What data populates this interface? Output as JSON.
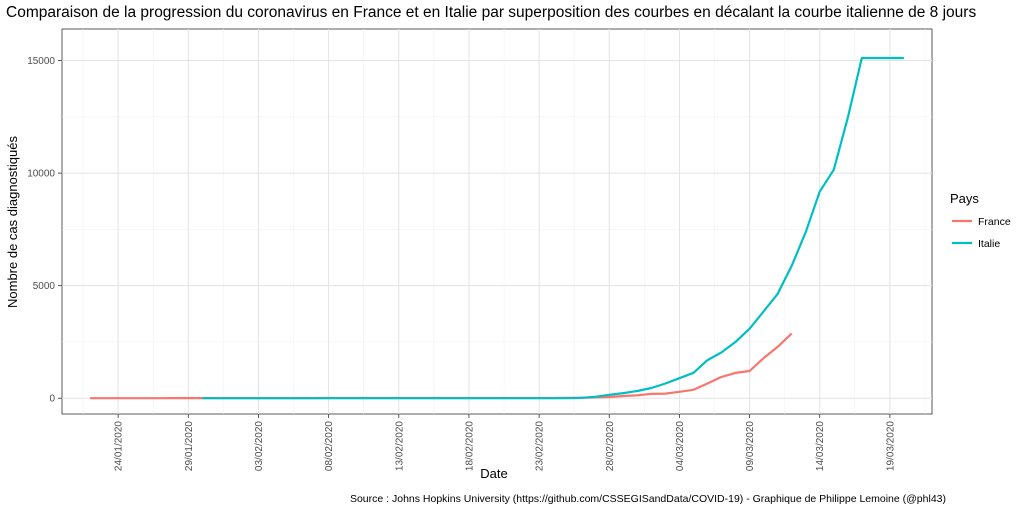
{
  "chart_data": {
    "type": "line",
    "title": "Comparaison de la progression du coronavirus en France et en Italie par superposition des courbes en décalant la courbe italienne de 8 jours",
    "xlabel": "Date",
    "ylabel": "Nombre de cas diagnostiqués",
    "caption": "Source : Johns Hopkins University (https://github.com/CSSEGISandData/COVID-19) - Graphique de Philippe Lemoine (@phl43)",
    "legend_title": "Pays",
    "legend_position": "right",
    "grid": true,
    "xlim": [
      "2020-01-20",
      "2020-03-22"
    ],
    "ylim": [
      -700,
      16400
    ],
    "x_ticks": [
      "24/01/2020",
      "29/01/2020",
      "03/02/2020",
      "08/02/2020",
      "13/02/2020",
      "18/02/2020",
      "23/02/2020",
      "28/02/2020",
      "04/03/2020",
      "09/03/2020",
      "14/03/2020",
      "19/03/2020"
    ],
    "y_ticks": [
      0,
      5000,
      10000,
      15000
    ],
    "y_tick_labels": [
      "0",
      "5000",
      "10000",
      "15000"
    ],
    "series": [
      {
        "name": "France",
        "color": "#F8766D",
        "x": [
          "2020-01-22",
          "2020-01-23",
          "2020-01-24",
          "2020-01-25",
          "2020-01-26",
          "2020-01-27",
          "2020-01-28",
          "2020-01-29",
          "2020-01-30",
          "2020-01-31",
          "2020-02-01",
          "2020-02-02",
          "2020-02-03",
          "2020-02-04",
          "2020-02-05",
          "2020-02-06",
          "2020-02-07",
          "2020-02-08",
          "2020-02-09",
          "2020-02-10",
          "2020-02-11",
          "2020-02-12",
          "2020-02-13",
          "2020-02-14",
          "2020-02-15",
          "2020-02-16",
          "2020-02-17",
          "2020-02-18",
          "2020-02-19",
          "2020-02-20",
          "2020-02-21",
          "2020-02-22",
          "2020-02-23",
          "2020-02-24",
          "2020-02-25",
          "2020-02-26",
          "2020-02-27",
          "2020-02-28",
          "2020-02-29",
          "2020-03-01",
          "2020-03-02",
          "2020-03-03",
          "2020-03-04",
          "2020-03-05",
          "2020-03-06",
          "2020-03-07",
          "2020-03-08",
          "2020-03-09",
          "2020-03-10",
          "2020-03-11",
          "2020-03-12"
        ],
        "values": [
          0,
          0,
          2,
          3,
          3,
          3,
          4,
          5,
          5,
          5,
          6,
          6,
          6,
          6,
          6,
          6,
          6,
          11,
          11,
          11,
          11,
          11,
          11,
          11,
          12,
          12,
          12,
          12,
          12,
          12,
          12,
          12,
          12,
          12,
          14,
          18,
          38,
          57,
          100,
          130,
          191,
          204,
          285,
          377,
          653,
          949,
          1126,
          1209,
          1784,
          2281,
          2876
        ]
      },
      {
        "name": "Italie",
        "color": "#00BFC4",
        "x": [
          "2020-01-30",
          "2020-01-31",
          "2020-02-01",
          "2020-02-02",
          "2020-02-03",
          "2020-02-04",
          "2020-02-05",
          "2020-02-06",
          "2020-02-07",
          "2020-02-08",
          "2020-02-09",
          "2020-02-10",
          "2020-02-11",
          "2020-02-12",
          "2020-02-13",
          "2020-02-14",
          "2020-02-15",
          "2020-02-16",
          "2020-02-17",
          "2020-02-18",
          "2020-02-19",
          "2020-02-20",
          "2020-02-21",
          "2020-02-22",
          "2020-02-23",
          "2020-02-24",
          "2020-02-25",
          "2020-02-26",
          "2020-02-27",
          "2020-02-28",
          "2020-02-29",
          "2020-03-01",
          "2020-03-02",
          "2020-03-03",
          "2020-03-04",
          "2020-03-05",
          "2020-03-06",
          "2020-03-07",
          "2020-03-08",
          "2020-03-09",
          "2020-03-10",
          "2020-03-11",
          "2020-03-12",
          "2020-03-13",
          "2020-03-14",
          "2020-03-15",
          "2020-03-16",
          "2020-03-17",
          "2020-03-18",
          "2020-03-19",
          "2020-03-20"
        ],
        "values": [
          0,
          0,
          0,
          0,
          0,
          0,
          0,
          0,
          2,
          2,
          2,
          3,
          3,
          3,
          3,
          3,
          3,
          3,
          3,
          3,
          3,
          3,
          3,
          3,
          3,
          3,
          3,
          20,
          62,
          155,
          229,
          322,
          453,
          655,
          888,
          1128,
          1694,
          2036,
          2502,
          3089,
          3858,
          4636,
          5883,
          7375,
          9172,
          10149,
          12462,
          15113,
          15113,
          15113,
          15113
        ]
      }
    ]
  }
}
